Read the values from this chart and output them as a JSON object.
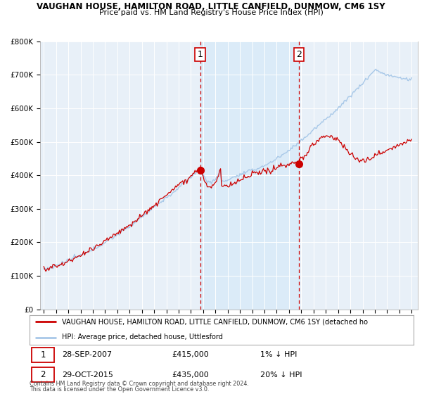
{
  "title": "VAUGHAN HOUSE, HAMILTON ROAD, LITTLE CANFIELD, DUNMOW, CM6 1SY",
  "subtitle": "Price paid vs. HM Land Registry's House Price Index (HPI)",
  "hpi_color": "#a8c8e8",
  "price_color": "#cc0000",
  "marker_color": "#cc0000",
  "shade_color": "#d0e8f8",
  "plot_bg": "#e8f0f8",
  "ylim": [
    0,
    800000
  ],
  "yticks": [
    0,
    100000,
    200000,
    300000,
    400000,
    500000,
    600000,
    700000,
    800000
  ],
  "ytick_labels": [
    "£0",
    "£100K",
    "£200K",
    "£300K",
    "£400K",
    "£500K",
    "£600K",
    "£700K",
    "£800K"
  ],
  "sale1_date": 2007.75,
  "sale1_price": 415000,
  "sale1_label": "1",
  "sale2_date": 2015.83,
  "sale2_price": 435000,
  "sale2_label": "2",
  "legend_line1": "VAUGHAN HOUSE, HAMILTON ROAD, LITTLE CANFIELD, DUNMOW, CM6 1SY (detached ho",
  "legend_line2": "HPI: Average price, detached house, Uttlesford",
  "footnote1": "Contains HM Land Registry data © Crown copyright and database right 2024.",
  "footnote2": "This data is licensed under the Open Government Licence v3.0.",
  "xstart": 1995,
  "xend": 2025
}
